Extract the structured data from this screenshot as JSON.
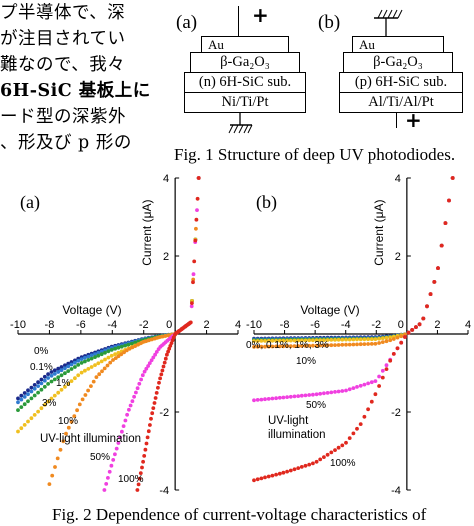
{
  "japanese_text": [
    "プ半導体で、深",
    "が注目されてい",
    "難なので、我々",
    "6H-SiC 基板上に",
    "ード型の深紫外",
    "、形及び p 形の"
  ],
  "fig1": {
    "caption": "Fig. 1 Structure of deep UV photodiodes.",
    "a": {
      "label": "(a)",
      "top_sign": "+",
      "layers": [
        "Au",
        "β-Ga₂O₃",
        "(n) 6H-SiC sub.",
        "Ni/Ti/Pt"
      ]
    },
    "b": {
      "label": "(b)",
      "bottom_sign": "+",
      "layers": [
        "Au",
        "β-Ga₂O₃",
        "(p) 6H-SiC sub.",
        "Al/Ti/Al/Pt"
      ]
    }
  },
  "fig2": {
    "caption": "Fig. 2 Dependence of current-voltage characteristics of",
    "a": {
      "label": "(a)",
      "xlabel": "Voltage (V)",
      "ylabel": "Current (μA)",
      "illumination_label": "UV-light illumination"
    },
    "b": {
      "label": "(b)",
      "xlabel": "Voltage (V)",
      "ylabel": "Current (μA)",
      "illumination_label_1": "UV-light",
      "illumination_label_2": "illumination"
    }
  },
  "chart_data": [
    {
      "type": "scatter",
      "title": "(a)",
      "xlabel": "Voltage (V)",
      "ylabel": "Current (μA)",
      "xlim": [
        -10,
        4
      ],
      "ylim": [
        -4,
        4
      ],
      "x_ticks": [
        "-10",
        "-8",
        "-6",
        "-4",
        "-2",
        "0",
        "2",
        "4"
      ],
      "y_ticks": [
        "4",
        "2",
        "-2",
        "-4"
      ],
      "series": [
        {
          "name": "0%",
          "color": "#1a2a8c",
          "x": [
            -10,
            -8,
            -6,
            -4,
            -2,
            -1,
            0,
            1,
            1.5
          ],
          "y": [
            -1.65,
            -1.0,
            -0.6,
            -0.32,
            -0.12,
            -0.05,
            0,
            0.3,
            4.0
          ]
        },
        {
          "name": "0.1%",
          "color": "#2f7bd0",
          "x": [
            -10,
            -8,
            -6,
            -4,
            -2,
            -1,
            0,
            1,
            1.5
          ],
          "y": [
            -1.75,
            -1.1,
            -0.65,
            -0.35,
            -0.13,
            -0.05,
            0,
            0.3,
            4.0
          ]
        },
        {
          "name": "1%",
          "color": "#2a9a3a",
          "x": [
            -10,
            -8,
            -6,
            -4,
            -2,
            -1,
            0,
            1,
            1.5
          ],
          "y": [
            -1.95,
            -1.25,
            -0.75,
            -0.4,
            -0.15,
            -0.06,
            0,
            0.3,
            4.0
          ]
        },
        {
          "name": "3%",
          "color": "#f0c020",
          "x": [
            -10,
            -8,
            -6,
            -4,
            -2,
            -1,
            0,
            1,
            1.5
          ],
          "y": [
            -2.5,
            -1.7,
            -1.0,
            -0.55,
            -0.2,
            -0.08,
            0,
            0.3,
            4.0
          ]
        },
        {
          "name": "10%",
          "color": "#f08a20",
          "x": [
            -8,
            -7,
            -6,
            -5,
            -4,
            -3,
            -2,
            -1,
            0,
            1,
            1.5
          ],
          "y": [
            -3.85,
            -2.6,
            -1.75,
            -1.1,
            -0.68,
            -0.4,
            -0.2,
            -0.08,
            0,
            0.3,
            4.0
          ]
        },
        {
          "name": "50%",
          "color": "#f040e0",
          "x": [
            -4.5,
            -4,
            -3,
            -2,
            -1,
            0,
            1,
            1.5
          ],
          "y": [
            -4.0,
            -3.3,
            -2.0,
            -1.0,
            -0.35,
            0,
            0.3,
            4.0
          ]
        },
        {
          "name": "100%",
          "color": "#e0281e",
          "x": [
            -2.4,
            -2,
            -1.5,
            -1,
            -0.5,
            0,
            1,
            1.5
          ],
          "y": [
            -4.0,
            -3.2,
            -2.1,
            -1.2,
            -0.5,
            0,
            0.3,
            4.0
          ]
        }
      ],
      "annotations": [
        "0%",
        "0.1%",
        "1%",
        "3%",
        "10%",
        "50%",
        "100%",
        "UV-light illumination"
      ]
    },
    {
      "type": "scatter",
      "title": "(b)",
      "xlabel": "Voltage (V)",
      "ylabel": "Current (μA)",
      "xlim": [
        -10,
        4
      ],
      "ylim": [
        -4,
        4
      ],
      "x_ticks": [
        "-10",
        "-8",
        "-6",
        "-4",
        "-2",
        "0",
        "2",
        "4"
      ],
      "y_ticks": [
        "4",
        "2",
        "-2",
        "-4"
      ],
      "series": [
        {
          "name": "0%",
          "color": "#1a2a8c",
          "x": [
            -10,
            -6,
            -2,
            -1,
            0,
            1,
            2,
            3
          ],
          "y": [
            -0.12,
            -0.1,
            -0.08,
            -0.05,
            0,
            0.3,
            1.6,
            4.0
          ]
        },
        {
          "name": "0.1%",
          "color": "#2f7bd0",
          "x": [
            -10,
            -6,
            -2,
            -1,
            0,
            1,
            2,
            3
          ],
          "y": [
            -0.14,
            -0.12,
            -0.1,
            -0.06,
            0,
            0.3,
            1.6,
            4.0
          ]
        },
        {
          "name": "1%",
          "color": "#2a9a3a",
          "x": [
            -10,
            -6,
            -2,
            -1,
            0,
            1,
            2,
            3
          ],
          "y": [
            -0.16,
            -0.14,
            -0.12,
            -0.07,
            0,
            0.3,
            1.6,
            4.0
          ]
        },
        {
          "name": "3%",
          "color": "#f0c020",
          "x": [
            -10,
            -6,
            -2,
            -1,
            0,
            1,
            2,
            3
          ],
          "y": [
            -0.18,
            -0.16,
            -0.13,
            -0.08,
            0,
            0.3,
            1.6,
            4.0
          ]
        },
        {
          "name": "10%",
          "color": "#f08a20",
          "x": [
            -10,
            -6,
            -2,
            -1,
            0,
            1,
            2,
            3
          ],
          "y": [
            -0.33,
            -0.3,
            -0.25,
            -0.15,
            0,
            0.3,
            1.6,
            4.0
          ]
        },
        {
          "name": "50%",
          "color": "#f040e0",
          "x": [
            -10,
            -6,
            -4,
            -2,
            -1,
            0,
            1,
            2,
            3
          ],
          "y": [
            -1.7,
            -1.55,
            -1.45,
            -1.2,
            -0.6,
            0,
            0.3,
            1.6,
            4.0
          ]
        },
        {
          "name": "100%",
          "color": "#e0281e",
          "x": [
            -10,
            -8,
            -6,
            -4,
            -3,
            -2,
            -1,
            0,
            1,
            2,
            3
          ],
          "y": [
            -3.75,
            -3.55,
            -3.3,
            -2.8,
            -2.3,
            -1.5,
            -0.6,
            0,
            0.3,
            1.6,
            4.0
          ]
        }
      ],
      "annotations": [
        "0%, 0.1%, 1%, 3%",
        "10%",
        "50%",
        "100%",
        "UV-light illumination"
      ]
    }
  ]
}
